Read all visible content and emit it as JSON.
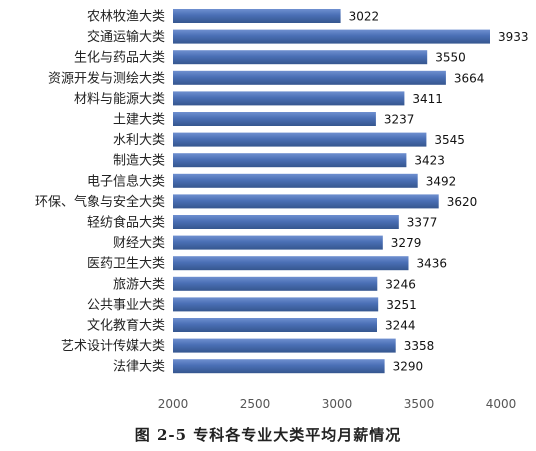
{
  "chart_data": {
    "type": "bar",
    "orientation": "horizontal",
    "categories": [
      "农林牧渔大类",
      "交通运输大类",
      "生化与药品大类",
      "资源开发与测绘大类",
      "材料与能源大类",
      "土建大类",
      "水利大类",
      "制造大类",
      "电子信息大类",
      "环保、气象与安全大类",
      "轻纺食品大类",
      "财经大类",
      "医药卫生大类",
      "旅游大类",
      "公共事业大类",
      "文化教育大类",
      "艺术设计传媒大类",
      "法律大类"
    ],
    "values": [
      3022,
      3933,
      3550,
      3664,
      3411,
      3237,
      3545,
      3423,
      3492,
      3620,
      3377,
      3279,
      3436,
      3246,
      3251,
      3244,
      3358,
      3290
    ],
    "xlim": [
      2000,
      4000
    ],
    "xticks": [
      2000,
      2500,
      3000,
      3500,
      4000
    ],
    "title": "图 2-5  专科各专业大类平均月薪情况",
    "grid": false,
    "legend": "none",
    "bar_color": "#4a6fb5"
  }
}
